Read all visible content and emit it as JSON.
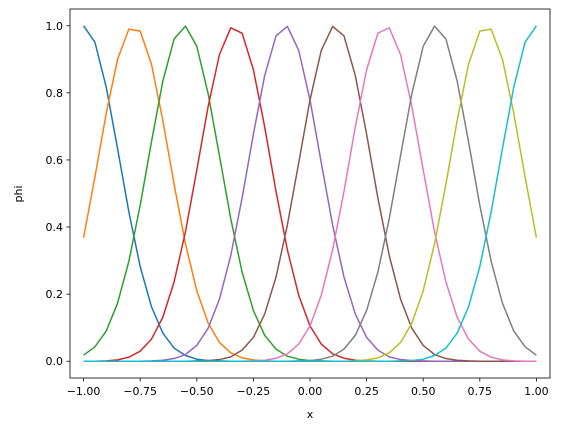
{
  "chart_data": {
    "type": "line",
    "xlabel": "x",
    "ylabel": "phi",
    "x": [
      -1,
      -0.95,
      -0.9,
      -0.85,
      -0.8,
      -0.75,
      -0.7,
      -0.65,
      -0.6,
      -0.55,
      -0.5,
      -0.45,
      -0.4,
      -0.35,
      -0.3,
      -0.25,
      -0.2,
      -0.15,
      -0.1,
      -0.05,
      0,
      0.05,
      0.1,
      0.15,
      0.2,
      0.25,
      0.3,
      0.35,
      0.4,
      0.45,
      0.5,
      0.55,
      0.6,
      0.65,
      0.7,
      0.75,
      0.8,
      0.85,
      0.9,
      0.95,
      1
    ],
    "series": [
      {
        "color": "#1f77b4",
        "values": [
          1,
          0.951,
          0.817,
          0.634,
          0.445,
          0.282,
          0.162,
          0.084,
          0.039,
          0.017,
          0.006,
          0.002,
          0.001,
          0,
          0,
          0,
          0,
          0,
          0,
          0,
          0,
          0,
          0,
          0,
          0,
          0,
          0,
          0,
          0,
          0,
          0,
          0,
          0,
          0,
          0,
          0,
          0,
          0,
          0,
          0,
          0
        ]
      },
      {
        "color": "#ff7f0e",
        "values": [
          0.368,
          0.549,
          0.739,
          0.9,
          0.99,
          0.984,
          0.885,
          0.718,
          0.527,
          0.35,
          0.21,
          0.114,
          0.056,
          0.025,
          0.01,
          0.004,
          0.001,
          0,
          0,
          0,
          0,
          0,
          0,
          0,
          0,
          0,
          0,
          0,
          0,
          0,
          0,
          0,
          0,
          0,
          0,
          0,
          0,
          0,
          0,
          0,
          0
        ]
      },
      {
        "color": "#2ca02c",
        "values": [
          0.018,
          0.043,
          0.09,
          0.173,
          0.298,
          0.465,
          0.655,
          0.835,
          0.961,
          0.999,
          0.939,
          0.798,
          0.613,
          0.425,
          0.266,
          0.151,
          0.077,
          0.036,
          0.015,
          0.006,
          0.002,
          0.001,
          0,
          0,
          0,
          0,
          0,
          0,
          0,
          0,
          0,
          0,
          0,
          0,
          0,
          0,
          0,
          0,
          0,
          0,
          0
        ]
      },
      {
        "color": "#d62728",
        "values": [
          0,
          0,
          0.001,
          0.004,
          0.012,
          0.03,
          0.066,
          0.131,
          0.237,
          0.386,
          0.57,
          0.759,
          0.914,
          0.994,
          0.978,
          0.869,
          0.698,
          0.506,
          0.332,
          0.197,
          0.105,
          0.051,
          0.022,
          0.009,
          0.003,
          0.001,
          0,
          0,
          0,
          0,
          0,
          0,
          0,
          0,
          0,
          0,
          0,
          0,
          0,
          0,
          0
        ]
      },
      {
        "color": "#9467bd",
        "values": [
          0,
          0,
          0,
          0,
          0,
          0,
          0.001,
          0.003,
          0.008,
          0.02,
          0.047,
          0.098,
          0.185,
          0.315,
          0.486,
          0.677,
          0.852,
          0.97,
          0.998,
          0.927,
          0.779,
          0.591,
          0.406,
          0.251,
          0.141,
          0.071,
          0.033,
          0.013,
          0.005,
          0.002,
          0.001,
          0,
          0,
          0,
          0,
          0,
          0,
          0,
          0,
          0,
          0
        ]
      },
      {
        "color": "#8c564b",
        "values": [
          0,
          0,
          0,
          0,
          0,
          0,
          0,
          0,
          0,
          0,
          0.001,
          0.002,
          0.005,
          0.013,
          0.033,
          0.071,
          0.141,
          0.251,
          0.406,
          0.591,
          0.779,
          0.927,
          0.998,
          0.97,
          0.852,
          0.677,
          0.486,
          0.315,
          0.185,
          0.098,
          0.047,
          0.02,
          0.008,
          0.003,
          0.001,
          0,
          0,
          0,
          0,
          0,
          0
        ]
      },
      {
        "color": "#e377c2",
        "values": [
          0,
          0,
          0,
          0,
          0,
          0,
          0,
          0,
          0,
          0,
          0,
          0,
          0,
          0,
          0,
          0.001,
          0.003,
          0.009,
          0.022,
          0.051,
          0.105,
          0.197,
          0.332,
          0.506,
          0.698,
          0.869,
          0.978,
          0.994,
          0.914,
          0.759,
          0.57,
          0.386,
          0.237,
          0.131,
          0.066,
          0.03,
          0.012,
          0.004,
          0.001,
          0,
          0
        ]
      },
      {
        "color": "#7f7f7f",
        "values": [
          0,
          0,
          0,
          0,
          0,
          0,
          0,
          0,
          0,
          0,
          0,
          0,
          0,
          0,
          0,
          0,
          0,
          0,
          0,
          0.001,
          0.002,
          0.006,
          0.015,
          0.036,
          0.077,
          0.151,
          0.266,
          0.425,
          0.613,
          0.798,
          0.939,
          0.999,
          0.961,
          0.835,
          0.655,
          0.465,
          0.298,
          0.173,
          0.09,
          0.043,
          0.018
        ]
      },
      {
        "color": "#bcbd22",
        "values": [
          0,
          0,
          0,
          0,
          0,
          0,
          0,
          0,
          0,
          0,
          0,
          0,
          0,
          0,
          0,
          0,
          0,
          0,
          0,
          0,
          0,
          0,
          0,
          0,
          0.001,
          0.004,
          0.01,
          0.025,
          0.056,
          0.114,
          0.21,
          0.35,
          0.527,
          0.718,
          0.885,
          0.984,
          0.99,
          0.9,
          0.739,
          0.549,
          0.368
        ]
      },
      {
        "color": "#17becf",
        "values": [
          0,
          0,
          0,
          0,
          0,
          0,
          0,
          0,
          0,
          0,
          0,
          0,
          0,
          0,
          0,
          0,
          0,
          0,
          0,
          0,
          0,
          0,
          0,
          0,
          0,
          0,
          0,
          0,
          0.001,
          0.002,
          0.006,
          0.017,
          0.039,
          0.084,
          0.162,
          0.282,
          0.445,
          0.634,
          0.817,
          0.951,
          1
        ]
      }
    ],
    "xlim": [
      -1.06,
      1.06
    ],
    "ylim": [
      -0.05,
      1.05
    ],
    "xticks": [
      {
        "value": -1,
        "label": "−1.00"
      },
      {
        "value": -0.75,
        "label": "−0.75"
      },
      {
        "value": -0.5,
        "label": "−0.50"
      },
      {
        "value": -0.25,
        "label": "−0.25"
      },
      {
        "value": 0,
        "label": "0.00"
      },
      {
        "value": 0.25,
        "label": "0.25"
      },
      {
        "value": 0.5,
        "label": "0.50"
      },
      {
        "value": 0.75,
        "label": "0.75"
      },
      {
        "value": 1,
        "label": "1.00"
      }
    ],
    "yticks": [
      {
        "value": 0,
        "label": "0.0"
      },
      0.2,
      0.4,
      0.6,
      0.8,
      {
        "value": 1,
        "label": "1.0"
      }
    ],
    "grid": false
  }
}
